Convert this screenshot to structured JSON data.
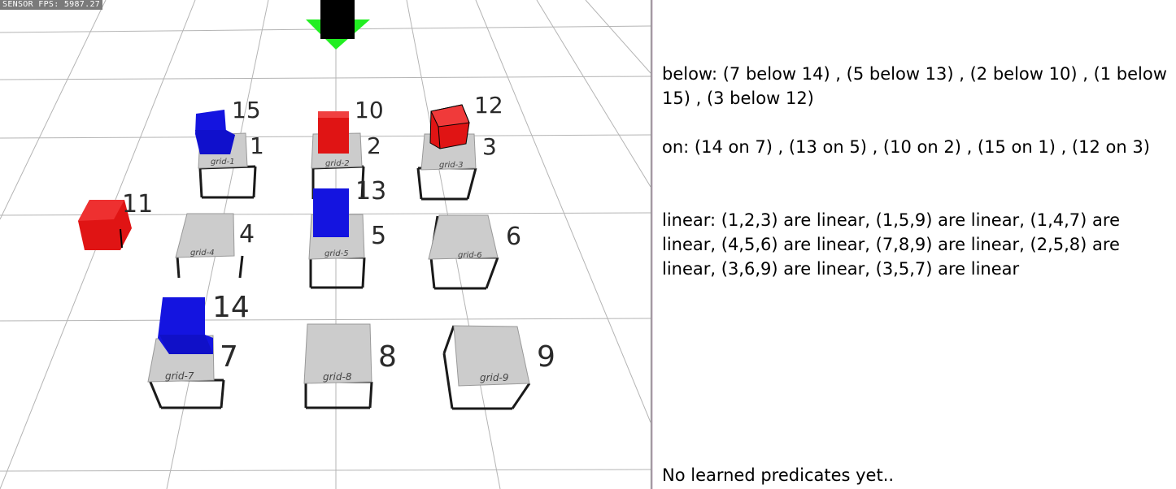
{
  "viewport": {
    "fps_text": "SENSOR FPS: 5987.27",
    "colors": {
      "red": "#e01414",
      "blue": "#1414e0",
      "gripper": "#000000",
      "arrow": "#22ee22",
      "tile": "#cccccc"
    },
    "grid_cells": [
      {
        "number": "1",
        "label": "grid-1"
      },
      {
        "number": "2",
        "label": "grid-2"
      },
      {
        "number": "3",
        "label": "grid-3"
      },
      {
        "number": "4",
        "label": "grid-4"
      },
      {
        "number": "5",
        "label": "grid-5"
      },
      {
        "number": "6",
        "label": "grid-6"
      },
      {
        "number": "7",
        "label": "grid-7"
      },
      {
        "number": "8",
        "label": "grid-8"
      },
      {
        "number": "9",
        "label": "grid-9"
      }
    ],
    "blocks": [
      {
        "number": "10",
        "color": "red"
      },
      {
        "number": "11",
        "color": "red"
      },
      {
        "number": "12",
        "color": "red"
      },
      {
        "number": "13",
        "color": "blue"
      },
      {
        "number": "14",
        "color": "blue"
      },
      {
        "number": "15",
        "color": "blue"
      }
    ]
  },
  "panel": {
    "below": "below: (7 below 14) , (5 below 13) , (2 below 10) , (1 below 15) , (3 below 12)",
    "on": "on: (14 on 7) , (13 on 5) , (10 on 2) , (15 on 1) , (12 on 3)",
    "linear": "linear: (1,2,3) are linear, (1,5,9) are linear, (1,4,7) are linear, (4,5,6) are linear, (7,8,9) are linear, (2,5,8) are linear, (3,6,9) are linear, (3,5,7) are linear",
    "learned": "No learned predicates yet.."
  }
}
